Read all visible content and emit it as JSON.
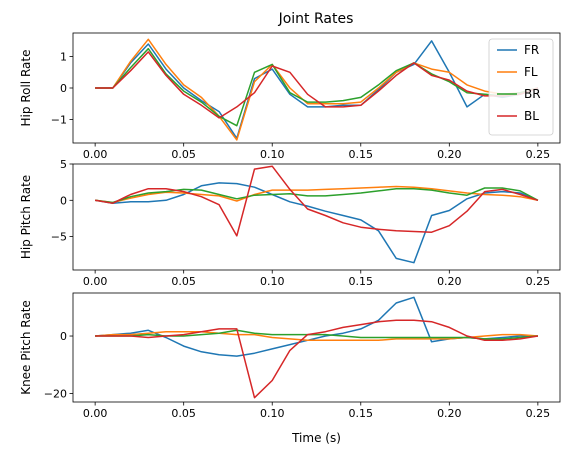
{
  "figure_title": "Joint Rates",
  "colors": {
    "FR": "#1f77b4",
    "FL": "#ff7f0e",
    "BR": "#2ca02c",
    "BL": "#d62728"
  },
  "chart_data": [
    {
      "type": "line",
      "title": "Joint Rates",
      "xlabel": "",
      "ylabel": "Hip Roll Rate",
      "xlim": [
        -0.0125,
        0.2625
      ],
      "ylim": [
        -1.75,
        1.75
      ],
      "xticks": [
        0.0,
        0.05,
        0.1,
        0.15,
        0.2,
        0.25
      ],
      "xtick_labels": [
        "0.00",
        "0.05",
        "0.10",
        "0.15",
        "0.20",
        "0.25"
      ],
      "yticks": [
        -1,
        0,
        1
      ],
      "ytick_labels": [
        "−1",
        "0",
        "1"
      ],
      "legend": {
        "placement": "top-right",
        "entries": [
          "FR",
          "FL",
          "BR",
          "BL"
        ]
      },
      "x": [
        0.0,
        0.01,
        0.02,
        0.03,
        0.04,
        0.05,
        0.06,
        0.07,
        0.08,
        0.09,
        0.1,
        0.11,
        0.12,
        0.13,
        0.14,
        0.15,
        0.16,
        0.17,
        0.18,
        0.19,
        0.2,
        0.21,
        0.22,
        0.23,
        0.24,
        0.25
      ],
      "series": [
        {
          "name": "FR",
          "values": [
            0.0,
            0.0,
            0.8,
            1.4,
            0.6,
            0.0,
            -0.4,
            -0.75,
            -1.6,
            0.3,
            0.6,
            -0.2,
            -0.6,
            -0.6,
            -0.55,
            -0.55,
            -0.05,
            0.5,
            0.75,
            1.5,
            0.5,
            -0.6,
            -0.2,
            -0.3,
            -0.2,
            0.0
          ]
        },
        {
          "name": "FL",
          "values": [
            0.0,
            0.0,
            0.85,
            1.55,
            0.75,
            0.1,
            -0.3,
            -0.9,
            -1.65,
            0.2,
            0.75,
            0.0,
            -0.5,
            -0.5,
            -0.5,
            -0.45,
            0.0,
            0.5,
            0.8,
            0.6,
            0.5,
            0.1,
            -0.1,
            -0.2,
            -0.15,
            0.0
          ]
        },
        {
          "name": "BR",
          "values": [
            0.0,
            0.0,
            0.65,
            1.25,
            0.45,
            -0.1,
            -0.45,
            -0.9,
            -1.2,
            0.5,
            0.75,
            -0.15,
            -0.45,
            -0.45,
            -0.4,
            -0.3,
            0.1,
            0.55,
            0.8,
            0.45,
            0.2,
            -0.15,
            -0.2,
            -0.25,
            -0.15,
            0.0
          ]
        },
        {
          "name": "BL",
          "values": [
            0.0,
            0.0,
            0.55,
            1.15,
            0.4,
            -0.2,
            -0.55,
            -0.95,
            -0.6,
            -0.15,
            0.7,
            0.5,
            -0.2,
            -0.6,
            -0.6,
            -0.55,
            -0.1,
            0.4,
            0.8,
            0.4,
            0.25,
            -0.1,
            -0.25,
            -0.25,
            -0.2,
            0.0
          ]
        }
      ]
    },
    {
      "type": "line",
      "title": "",
      "xlabel": "",
      "ylabel": "Hip Pitch Rate",
      "xlim": [
        -0.0125,
        0.2625
      ],
      "ylim": [
        -9.6,
        5.0
      ],
      "xticks": [
        0.0,
        0.05,
        0.1,
        0.15,
        0.2,
        0.25
      ],
      "xtick_labels": [
        "0.00",
        "0.05",
        "0.10",
        "0.15",
        "0.20",
        "0.25"
      ],
      "yticks": [
        -5,
        0,
        5
      ],
      "ytick_labels": [
        "−5",
        "0",
        "5"
      ],
      "x": [
        0.0,
        0.01,
        0.02,
        0.03,
        0.04,
        0.05,
        0.06,
        0.07,
        0.08,
        0.09,
        0.1,
        0.11,
        0.12,
        0.13,
        0.14,
        0.15,
        0.16,
        0.17,
        0.18,
        0.19,
        0.2,
        0.21,
        0.22,
        0.23,
        0.24,
        0.25
      ],
      "series": [
        {
          "name": "FR",
          "values": [
            0.0,
            -0.4,
            -0.2,
            -0.2,
            0.0,
            0.8,
            2.0,
            2.4,
            2.3,
            1.8,
            0.8,
            -0.2,
            -0.8,
            -1.5,
            -2.1,
            -2.7,
            -4.2,
            -8.0,
            -8.6,
            -2.1,
            -1.4,
            0.2,
            1.0,
            1.2,
            1.0,
            0.0
          ]
        },
        {
          "name": "FL",
          "values": [
            0.0,
            -0.3,
            0.3,
            0.8,
            1.1,
            1.0,
            0.8,
            0.6,
            -0.1,
            0.8,
            1.4,
            1.4,
            1.4,
            1.5,
            1.6,
            1.7,
            1.8,
            1.9,
            1.8,
            1.6,
            1.3,
            1.0,
            0.8,
            0.7,
            0.5,
            0.0
          ]
        },
        {
          "name": "BR",
          "values": [
            0.0,
            -0.3,
            0.5,
            1.0,
            1.2,
            1.5,
            1.4,
            0.8,
            0.2,
            0.7,
            0.8,
            0.9,
            0.6,
            0.6,
            0.8,
            1.0,
            1.3,
            1.6,
            1.6,
            1.4,
            1.0,
            0.7,
            1.7,
            1.7,
            1.3,
            0.0
          ]
        },
        {
          "name": "BL",
          "values": [
            0.0,
            -0.4,
            0.8,
            1.6,
            1.6,
            1.2,
            0.5,
            -0.6,
            -4.9,
            4.3,
            4.7,
            1.5,
            -1.2,
            -2.1,
            -3.1,
            -3.7,
            -4.0,
            -4.2,
            -4.3,
            -4.4,
            -3.5,
            -1.5,
            1.2,
            1.5,
            0.8,
            0.0
          ]
        }
      ]
    },
    {
      "type": "line",
      "title": "",
      "xlabel": "Time (s)",
      "ylabel": "Knee Pitch Rate",
      "xlim": [
        -0.0125,
        0.2625
      ],
      "ylim": [
        -23.0,
        15.0
      ],
      "xticks": [
        0.0,
        0.05,
        0.1,
        0.15,
        0.2,
        0.25
      ],
      "xtick_labels": [
        "0.00",
        "0.05",
        "0.10",
        "0.15",
        "0.20",
        "0.25"
      ],
      "yticks": [
        -20,
        0
      ],
      "ytick_labels": [
        "−20",
        "0"
      ],
      "x": [
        0.0,
        0.01,
        0.02,
        0.03,
        0.04,
        0.05,
        0.06,
        0.07,
        0.08,
        0.09,
        0.1,
        0.11,
        0.12,
        0.13,
        0.14,
        0.15,
        0.16,
        0.17,
        0.18,
        0.19,
        0.2,
        0.21,
        0.22,
        0.23,
        0.24,
        0.25
      ],
      "series": [
        {
          "name": "FR",
          "values": [
            0.0,
            0.5,
            1.0,
            2.0,
            -0.5,
            -3.5,
            -5.5,
            -6.5,
            -7.0,
            -6.0,
            -4.5,
            -3.0,
            -1.5,
            0.0,
            1.0,
            2.5,
            5.5,
            11.5,
            13.5,
            -2.0,
            -1.0,
            -0.5,
            -1.0,
            -0.5,
            0.0,
            0.0
          ]
        },
        {
          "name": "FL",
          "values": [
            0.0,
            0.5,
            0.5,
            1.0,
            1.5,
            1.5,
            1.5,
            1.0,
            0.5,
            0.5,
            -0.5,
            -1.0,
            -1.5,
            -1.5,
            -1.5,
            -1.5,
            -1.5,
            -1.0,
            -1.0,
            -1.0,
            -1.0,
            -0.5,
            0.0,
            0.5,
            0.5,
            0.0
          ]
        },
        {
          "name": "BR",
          "values": [
            0.0,
            0.0,
            0.0,
            0.5,
            0.0,
            0.0,
            0.5,
            1.0,
            2.0,
            1.0,
            0.5,
            0.5,
            0.5,
            0.5,
            0.0,
            -0.5,
            -0.5,
            -0.5,
            -0.5,
            -0.5,
            -0.5,
            -0.5,
            -1.0,
            -1.0,
            -0.5,
            0.0
          ]
        },
        {
          "name": "BL",
          "values": [
            0.0,
            0.0,
            0.0,
            -0.5,
            0.0,
            0.5,
            1.5,
            2.5,
            2.5,
            -21.5,
            -15.5,
            -5.0,
            0.5,
            1.5,
            3.0,
            4.0,
            5.0,
            5.5,
            5.5,
            5.0,
            3.0,
            0.0,
            -1.5,
            -1.5,
            -1.0,
            0.0
          ]
        }
      ]
    }
  ]
}
